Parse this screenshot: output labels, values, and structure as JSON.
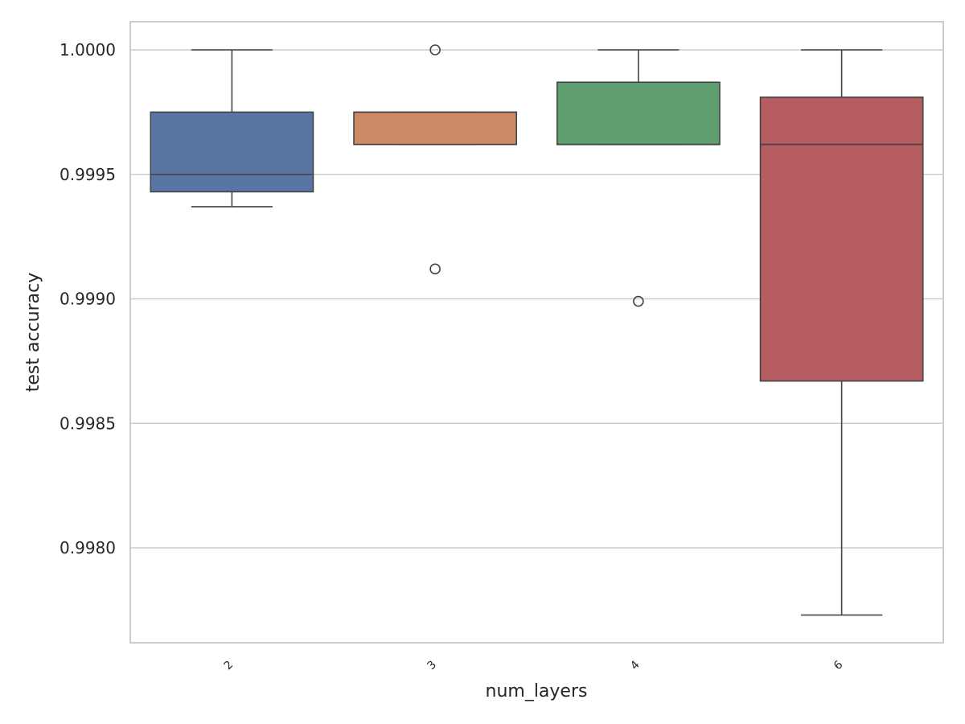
{
  "chart_data": {
    "type": "box",
    "title": "",
    "xlabel": "num_layers",
    "ylabel": "test accuracy",
    "categories": [
      "2",
      "3",
      "4",
      "6"
    ],
    "ylim": [
      0.99762,
      1.00013
    ],
    "yticks": [
      0.998,
      0.9985,
      0.999,
      0.9995,
      1.0
    ],
    "ytick_labels": [
      "0.9980",
      "0.9985",
      "0.9990",
      "0.9995",
      "1.0000"
    ],
    "grid": "horizontal",
    "legend": "none",
    "boxes": [
      {
        "category": "2",
        "color": "#5875a4",
        "whisker_low": 0.99937,
        "q1": 0.99943,
        "median": 0.9995,
        "q3": 0.99975,
        "whisker_high": 1.0,
        "outliers": []
      },
      {
        "category": "3",
        "color": "#cc8963",
        "whisker_low": 0.99962,
        "q1": 0.99962,
        "median": 0.99975,
        "q3": 0.99975,
        "whisker_high": 0.99975,
        "outliers": [
          1.0,
          0.99912
        ]
      },
      {
        "category": "4",
        "color": "#5f9e6e",
        "whisker_low": 0.99962,
        "q1": 0.99962,
        "median": 0.99962,
        "q3": 0.99987,
        "whisker_high": 1.0,
        "outliers": [
          0.99899
        ]
      },
      {
        "category": "6",
        "color": "#b55d60",
        "whisker_low": 0.99773,
        "q1": 0.99867,
        "median": 0.99962,
        "q3": 0.99981,
        "whisker_high": 1.0,
        "outliers": []
      }
    ]
  }
}
